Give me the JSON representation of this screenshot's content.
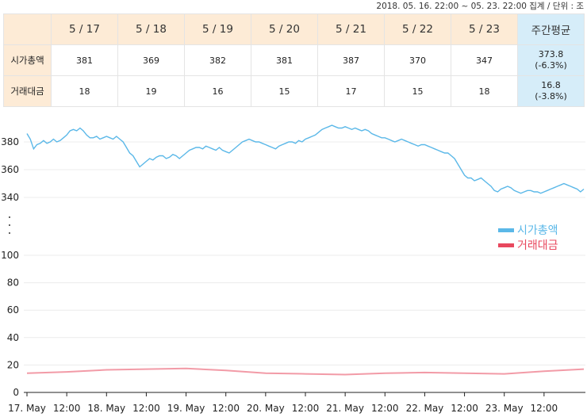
{
  "caption": "2018. 05. 16. 22:00 ~ 05. 23. 22:00 집계 / 단위 : 조",
  "table": {
    "headers": [
      "5 / 17",
      "5 / 18",
      "5 / 19",
      "5 / 20",
      "5 / 21",
      "5 / 22",
      "5 / 23"
    ],
    "avg_header": "주간평균",
    "rows": [
      {
        "label": "시가총액",
        "values": [
          "381",
          "369",
          "382",
          "381",
          "387",
          "370",
          "347"
        ],
        "avg": "373.8",
        "avg_change": "(-6.3%)"
      },
      {
        "label": "거래대금",
        "values": [
          "18",
          "19",
          "16",
          "15",
          "17",
          "15",
          "18"
        ],
        "avg": "16.8",
        "avg_change": "(-3.8%)"
      }
    ]
  },
  "chart_data": {
    "type": "line",
    "x_ticks": [
      "17. May",
      "12:00",
      "18. May",
      "12:00",
      "19. May",
      "12:00",
      "20. May",
      "12:00",
      "21. May",
      "12:00",
      "22. May",
      "12:00",
      "23. May",
      "12:00"
    ],
    "y_ticks_upper": [
      340,
      360,
      380
    ],
    "y_ticks_lower": [
      0,
      20,
      40,
      60,
      80,
      100
    ],
    "axis_break": true,
    "legend_position": "right",
    "series": [
      {
        "name": "시가총액",
        "color": "#5bb8e8",
        "x": [
          0,
          1,
          2,
          3,
          4,
          5,
          6,
          7,
          8,
          9,
          10,
          11,
          12,
          13,
          14,
          15,
          16,
          17,
          18,
          19,
          20,
          21,
          22,
          23,
          24,
          25,
          26,
          27,
          28,
          29,
          30,
          31,
          32,
          33,
          34,
          35,
          36,
          37,
          38,
          39,
          40,
          41,
          42,
          43,
          44,
          45,
          46,
          47,
          48,
          49,
          50,
          51,
          52,
          53,
          54,
          55,
          56,
          57,
          58,
          59,
          60,
          61,
          62,
          63,
          64,
          65,
          66,
          67,
          68,
          69,
          70,
          71,
          72,
          73,
          74,
          75,
          76,
          77,
          78,
          79,
          80,
          81,
          82,
          83,
          84,
          85,
          86,
          87,
          88,
          89,
          90,
          91,
          92,
          93,
          94,
          95,
          96,
          97,
          98,
          99,
          100,
          101,
          102,
          103,
          104,
          105,
          106,
          107,
          108,
          109,
          110,
          111,
          112,
          113,
          114,
          115,
          116,
          117,
          118,
          119,
          120,
          121,
          122,
          123,
          124,
          125,
          126,
          127,
          128,
          129,
          130,
          131,
          132,
          133,
          134,
          135,
          136,
          137,
          138,
          139,
          140,
          141,
          142,
          143,
          144,
          145,
          146,
          147,
          148,
          149,
          150,
          151,
          152,
          153,
          154,
          155,
          156,
          157,
          158,
          159,
          160,
          161,
          162,
          163,
          164,
          165,
          166,
          167,
          168
        ],
        "values": [
          386,
          382,
          375,
          378,
          379,
          381,
          379,
          380,
          382,
          380,
          381,
          383,
          385,
          388,
          389,
          388,
          390,
          388,
          385,
          383,
          383,
          384,
          382,
          383,
          384,
          383,
          382,
          384,
          382,
          380,
          376,
          372,
          370,
          366,
          362,
          364,
          366,
          368,
          367,
          369,
          370,
          370,
          368,
          369,
          371,
          370,
          368,
          370,
          372,
          374,
          375,
          376,
          376,
          375,
          377,
          376,
          375,
          374,
          376,
          374,
          373,
          372,
          374,
          376,
          378,
          380,
          381,
          382,
          381,
          380,
          380,
          379,
          378,
          377,
          376,
          375,
          377,
          378,
          379,
          380,
          380,
          379,
          381,
          380,
          382,
          383,
          384,
          385,
          387,
          389,
          390,
          391,
          392,
          391,
          390,
          390,
          391,
          390,
          389,
          390,
          389,
          388,
          389,
          388,
          386,
          385,
          384,
          383,
          383,
          382,
          381,
          380,
          381,
          382,
          381,
          380,
          379,
          378,
          377,
          378,
          378,
          377,
          376,
          375,
          374,
          373,
          372,
          372,
          370,
          368,
          364,
          360,
          356,
          354,
          354,
          352,
          353,
          354,
          352,
          350,
          348,
          345,
          344,
          346,
          347,
          348,
          347,
          345,
          344,
          343,
          344,
          345,
          345,
          344,
          344,
          343,
          344,
          345,
          346,
          347,
          348,
          349,
          350,
          349,
          348,
          347,
          346,
          344,
          346
        ]
      },
      {
        "name": "거래대금",
        "color": "#e8485e",
        "x": [
          0,
          12,
          24,
          36,
          48,
          60,
          72,
          84,
          96,
          108,
          120,
          132,
          144,
          156,
          168
        ],
        "values": [
          14,
          15,
          16.5,
          17,
          17.5,
          16,
          14,
          13.5,
          13,
          14,
          14.5,
          14,
          13.5,
          15.5,
          17
        ]
      }
    ]
  }
}
